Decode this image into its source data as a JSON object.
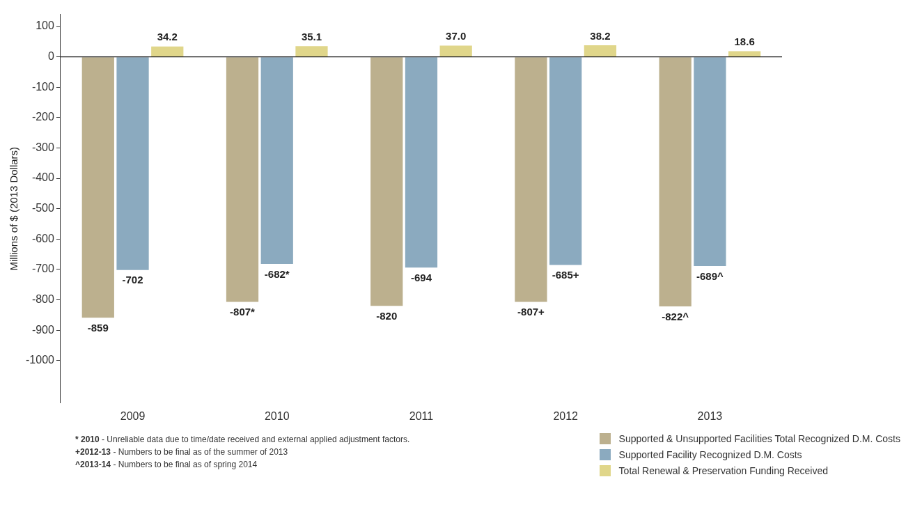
{
  "chart_data": {
    "type": "bar",
    "ylabel": "Millions of $ (2013 Dollars)",
    "categories": [
      "2009",
      "2010",
      "2011",
      "2012",
      "2013"
    ],
    "series": [
      {
        "name": "Supported & Unsupported Facilities Total Recognized D.M. Costs",
        "color": "#bcb08e",
        "values": [
          -859,
          -807,
          -820,
          -807,
          -822
        ],
        "value_labels": [
          "-859",
          "-807*",
          "-820",
          "-807+",
          "-822^"
        ]
      },
      {
        "name": "Supported Facility Recognized D.M. Costs",
        "color": "#8baabf",
        "values": [
          -702,
          -682,
          -694,
          -685,
          -689
        ],
        "value_labels": [
          "-702",
          "-682*",
          "-694",
          "-685+",
          "-689^"
        ]
      },
      {
        "name": "Total Renewal & Preservation Funding Received",
        "color": "#e0d68a",
        "values": [
          34.2,
          35.1,
          37.0,
          38.2,
          18.6
        ],
        "value_labels": [
          "34.2",
          "35.1",
          "37.0",
          "38.2",
          "18.6"
        ]
      }
    ],
    "ylim": [
      -1140,
      140
    ],
    "yticks": [
      100,
      0,
      -100,
      -200,
      -300,
      -400,
      -500,
      -600,
      -700,
      -800,
      -900,
      -1000
    ],
    "grid": false,
    "legend": "bottom right",
    "ref_lines": [
      {
        "axis": "y",
        "value": 0,
        "color": "#222222"
      }
    ],
    "annotations": [
      "* 2010 - Unreliable data due to time/date received and external applied adjustment factors.",
      "+2012-13 - Numbers to be final as of the summer of 2013",
      "^2013-14 - Numbers to be final as of spring 2014"
    ]
  }
}
